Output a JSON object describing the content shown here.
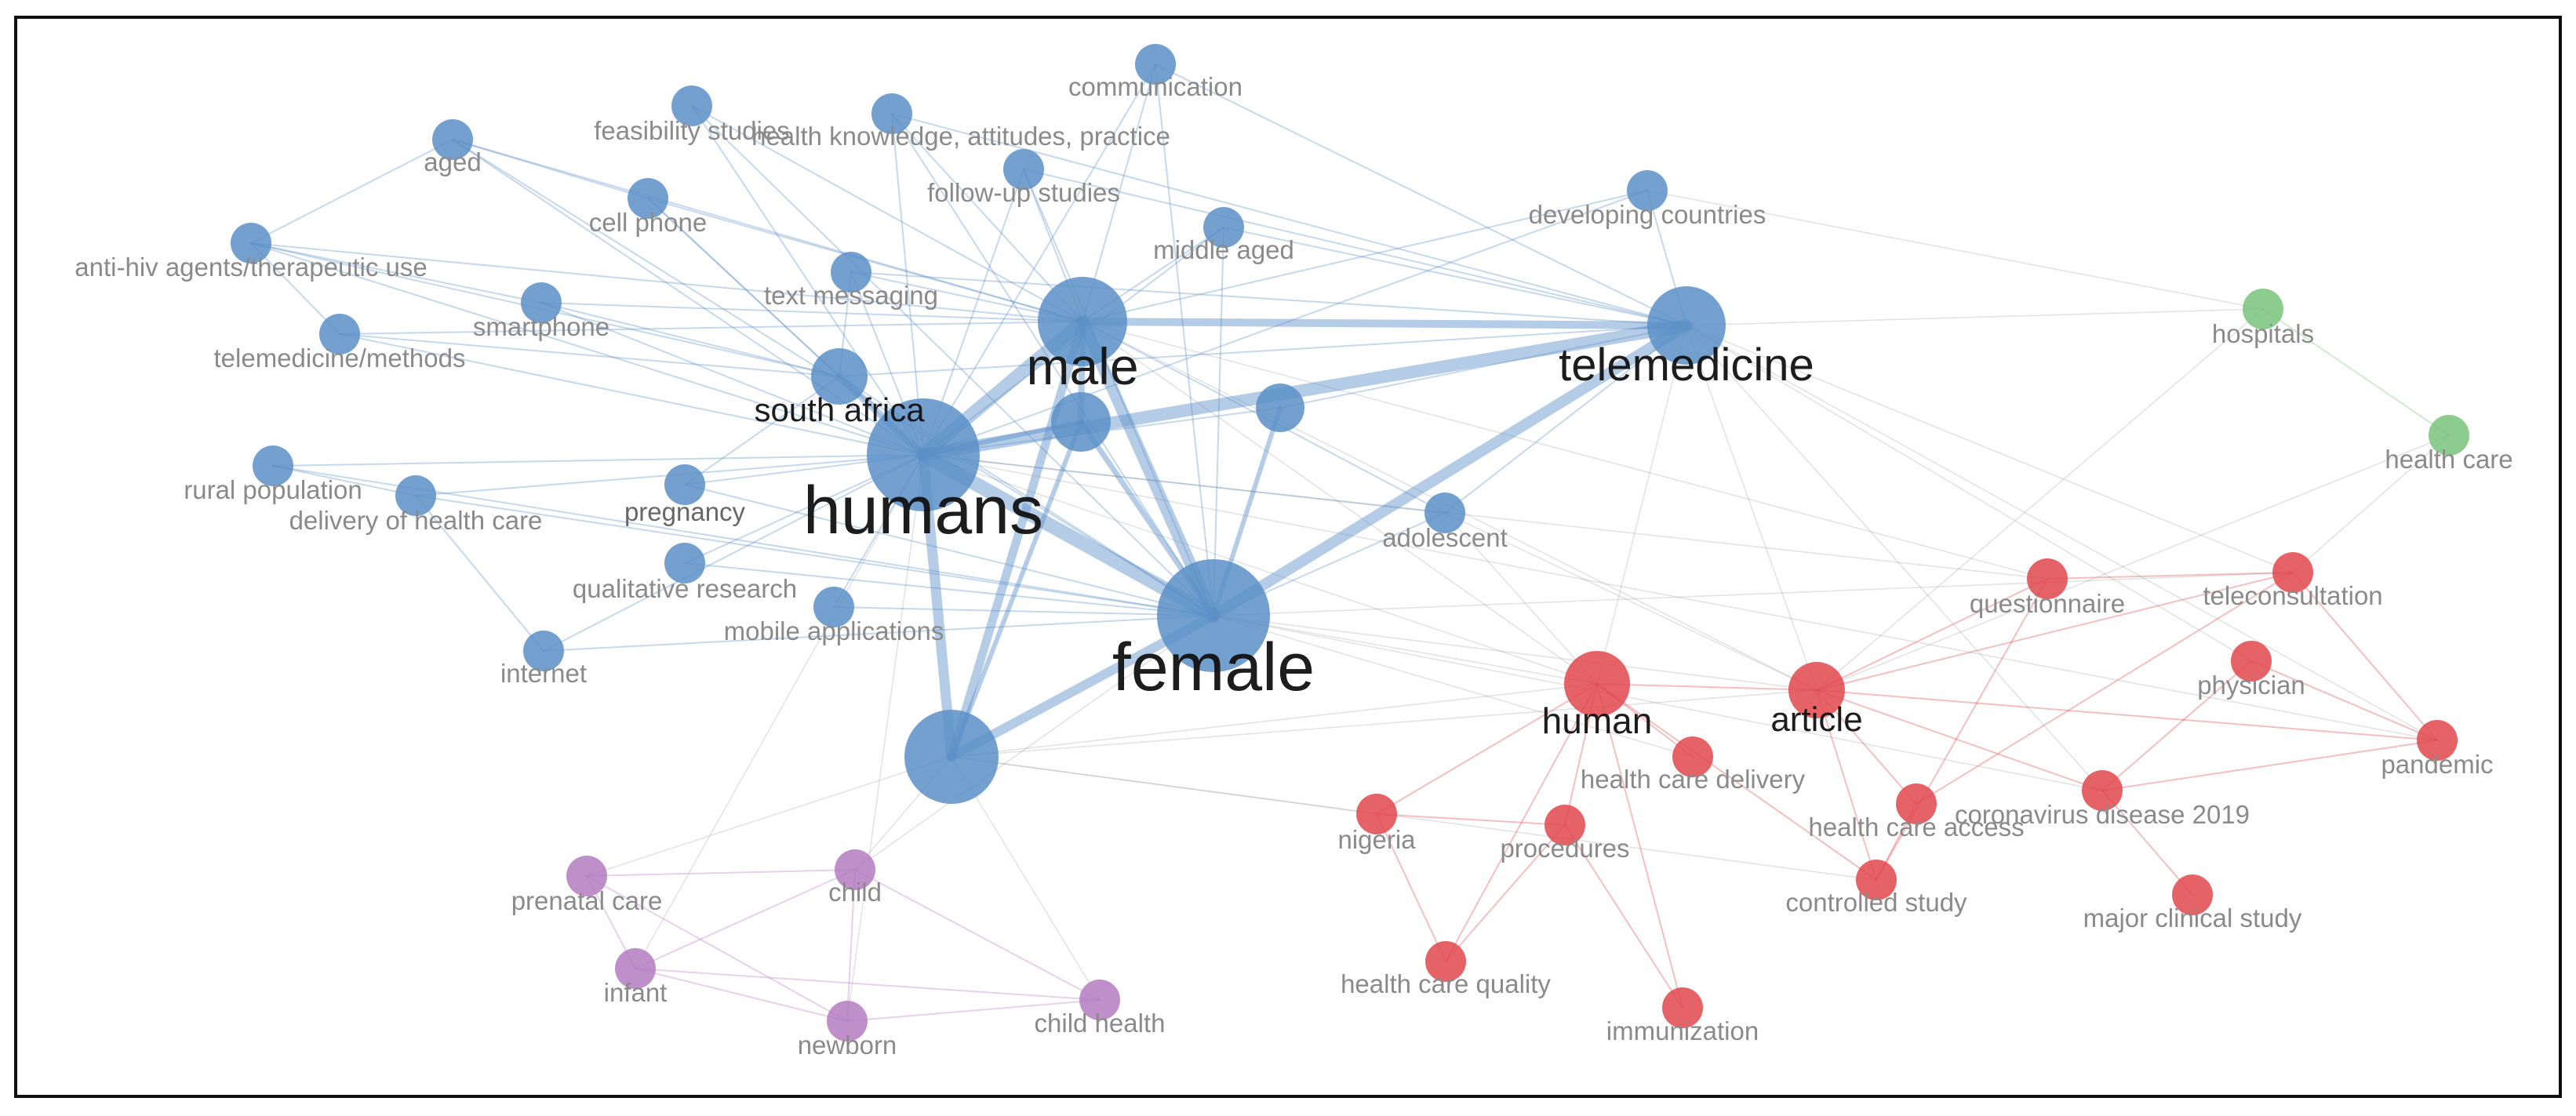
{
  "colors": {
    "blue": "#5b8fc7",
    "red": "#e0474c",
    "green": "#78c37a",
    "purple": "#b47bc1",
    "grey": "#9a9a9a"
  },
  "nodes": [
    {
      "id": "humans",
      "label": "humans",
      "group": "blue",
      "weight": 5
    },
    {
      "id": "female",
      "label": "female",
      "group": "blue",
      "weight": 5
    },
    {
      "id": "male",
      "label": "male",
      "group": "blue",
      "weight": 4
    },
    {
      "id": "telemedicine",
      "label": "telemedicine",
      "group": "blue",
      "weight": 3.5
    },
    {
      "id": "south_africa",
      "label": "south africa",
      "group": "blue",
      "weight": 2.5
    },
    {
      "id": "big_unlabeled",
      "label": "",
      "group": "blue",
      "weight": 5
    },
    {
      "id": "male_sub",
      "label": "",
      "group": "blue",
      "weight": 2
    },
    {
      "id": "mid_unlabeled",
      "label": "",
      "group": "blue",
      "weight": 1.5
    },
    {
      "id": "communication",
      "label": "communication",
      "group": "blue",
      "weight": 1
    },
    {
      "id": "feasibility_studies",
      "label": "feasibility studies",
      "group": "blue",
      "weight": 1
    },
    {
      "id": "health_knowledge",
      "label": "health knowledge, attitudes, practice",
      "group": "blue",
      "weight": 1
    },
    {
      "id": "aged",
      "label": "aged",
      "group": "blue",
      "weight": 1
    },
    {
      "id": "follow_up",
      "label": "follow-up studies",
      "group": "blue",
      "weight": 1
    },
    {
      "id": "cell_phone",
      "label": "cell phone",
      "group": "blue",
      "weight": 1
    },
    {
      "id": "middle_aged",
      "label": "middle aged",
      "group": "blue",
      "weight": 1
    },
    {
      "id": "developing_countries",
      "label": "developing countries",
      "group": "blue",
      "weight": 1
    },
    {
      "id": "anti_hiv",
      "label": "anti-hiv agents/therapeutic use",
      "group": "blue",
      "weight": 1
    },
    {
      "id": "text_messaging",
      "label": "text messaging",
      "group": "blue",
      "weight": 1
    },
    {
      "id": "smartphone",
      "label": "smartphone",
      "group": "blue",
      "weight": 1
    },
    {
      "id": "telemedicine_methods",
      "label": "telemedicine/methods",
      "group": "blue",
      "weight": 1
    },
    {
      "id": "rural_population",
      "label": "rural population",
      "group": "blue",
      "weight": 1
    },
    {
      "id": "delivery_hc",
      "label": "delivery of health care",
      "group": "blue",
      "weight": 1
    },
    {
      "id": "pregnancy",
      "label": "pregnancy",
      "group": "blue",
      "weight": 1
    },
    {
      "id": "adolescent",
      "label": "adolescent",
      "group": "blue",
      "weight": 1
    },
    {
      "id": "qualitative_research",
      "label": "qualitative research",
      "group": "blue",
      "weight": 1
    },
    {
      "id": "mobile_applications",
      "label": "mobile applications",
      "group": "blue",
      "weight": 1
    },
    {
      "id": "internet",
      "label": "internet",
      "group": "blue",
      "weight": 1
    },
    {
      "id": "hospitals",
      "label": "hospitals",
      "group": "green",
      "weight": 1
    },
    {
      "id": "health_care",
      "label": "health care",
      "group": "green",
      "weight": 1
    },
    {
      "id": "human",
      "label": "human",
      "group": "red",
      "weight": 2
    },
    {
      "id": "article",
      "label": "article",
      "group": "red",
      "weight": 1.8
    },
    {
      "id": "questionnaire",
      "label": "questionnaire",
      "group": "red",
      "weight": 1
    },
    {
      "id": "teleconsultation",
      "label": "teleconsultation",
      "group": "red",
      "weight": 1
    },
    {
      "id": "physician",
      "label": "physician",
      "group": "red",
      "weight": 1
    },
    {
      "id": "pandemic",
      "label": "pandemic",
      "group": "red",
      "weight": 1
    },
    {
      "id": "health_care_delivery",
      "label": "health care delivery",
      "group": "red",
      "weight": 1
    },
    {
      "id": "covid19",
      "label": "coronavirus disease 2019",
      "group": "red",
      "weight": 1
    },
    {
      "id": "health_care_access",
      "label": "health care access",
      "group": "red",
      "weight": 1
    },
    {
      "id": "nigeria",
      "label": "nigeria",
      "group": "red",
      "weight": 1
    },
    {
      "id": "procedures",
      "label": "procedures",
      "group": "red",
      "weight": 1
    },
    {
      "id": "controlled_study",
      "label": "controlled study",
      "group": "red",
      "weight": 1
    },
    {
      "id": "major_clinical_study",
      "label": "major clinical study",
      "group": "red",
      "weight": 1
    },
    {
      "id": "health_care_quality",
      "label": "health care quality",
      "group": "red",
      "weight": 1
    },
    {
      "id": "immunization",
      "label": "immunization",
      "group": "red",
      "weight": 1
    },
    {
      "id": "prenatal_care",
      "label": "prenatal care",
      "group": "purple",
      "weight": 1
    },
    {
      "id": "child",
      "label": "child",
      "group": "purple",
      "weight": 1
    },
    {
      "id": "infant",
      "label": "infant",
      "group": "purple",
      "weight": 1
    },
    {
      "id": "newborn",
      "label": "newborn",
      "group": "purple",
      "weight": 1
    },
    {
      "id": "child_health",
      "label": "child health",
      "group": "purple",
      "weight": 1
    }
  ],
  "strong_links": [
    [
      "humans",
      "female"
    ],
    [
      "humans",
      "male"
    ],
    [
      "humans",
      "telemedicine"
    ],
    [
      "female",
      "male"
    ],
    [
      "female",
      "telemedicine"
    ],
    [
      "humans",
      "big_unlabeled"
    ],
    [
      "female",
      "big_unlabeled"
    ],
    [
      "male",
      "big_unlabeled"
    ],
    [
      "male",
      "telemedicine"
    ],
    [
      "humans",
      "south_africa"
    ],
    [
      "male",
      "male_sub"
    ],
    [
      "female",
      "male_sub"
    ],
    [
      "humans",
      "male_sub"
    ],
    [
      "female",
      "mid_unlabeled"
    ],
    [
      "big_unlabeled",
      "male_sub"
    ]
  ],
  "weak_links": [
    [
      "human",
      "article"
    ],
    [
      "human",
      "health_care_delivery"
    ],
    [
      "human",
      "procedures"
    ],
    [
      "article",
      "questionnaire"
    ],
    [
      "article",
      "teleconsultation"
    ],
    [
      "article",
      "pandemic"
    ],
    [
      "article",
      "covid19"
    ],
    [
      "article",
      "health_care_access"
    ],
    [
      "article",
      "controlled_study"
    ],
    [
      "human",
      "nigeria"
    ],
    [
      "human",
      "health_care_quality"
    ],
    [
      "human",
      "controlled_study"
    ],
    [
      "nigeria",
      "procedures"
    ],
    [
      "nigeria",
      "health_care_quality"
    ],
    [
      "procedures",
      "health_care_quality"
    ],
    [
      "covid19",
      "pandemic"
    ],
    [
      "teleconsultation",
      "pandemic"
    ],
    [
      "physician",
      "pandemic"
    ],
    [
      "questionnaire",
      "teleconsultation"
    ],
    [
      "covid19",
      "major_clinical_study"
    ],
    [
      "health_care_access",
      "controlled_study"
    ],
    [
      "questionnaire",
      "controlled_study"
    ],
    [
      "physician",
      "covid19"
    ],
    [
      "teleconsultation",
      "health_care_access"
    ],
    [
      "human",
      "immunization"
    ],
    [
      "procedures",
      "immunization"
    ],
    [
      "hospitals",
      "health_care"
    ],
    [
      "hospitals",
      "telemedicine"
    ],
    [
      "hospitals",
      "article"
    ],
    [
      "prenatal_care",
      "child"
    ],
    [
      "prenatal_care",
      "infant"
    ],
    [
      "prenatal_care",
      "newborn"
    ],
    [
      "child",
      "infant"
    ],
    [
      "child",
      "newborn"
    ],
    [
      "infant",
      "newborn"
    ],
    [
      "child",
      "child_health"
    ],
    [
      "newborn",
      "child_health"
    ],
    [
      "infant",
      "child_health"
    ],
    [
      "prenatal_care",
      "big_unlabeled"
    ],
    [
      "child",
      "big_unlabeled"
    ],
    [
      "child_health",
      "big_unlabeled"
    ],
    [
      "newborn",
      "humans"
    ],
    [
      "infant",
      "humans"
    ],
    [
      "child",
      "female"
    ],
    [
      "telemedicine",
      "developing_countries"
    ],
    [
      "telemedicine",
      "human"
    ],
    [
      "telemedicine",
      "article"
    ],
    [
      "telemedicine",
      "adolescent"
    ],
    [
      "telemedicine",
      "middle_aged"
    ],
    [
      "telemedicine",
      "text_messaging"
    ],
    [
      "female",
      "human"
    ],
    [
      "female",
      "article"
    ],
    [
      "humans",
      "human"
    ],
    [
      "big_unlabeled",
      "human"
    ],
    [
      "big_unlabeled",
      "article"
    ],
    [
      "male",
      "human"
    ],
    [
      "male",
      "article"
    ],
    [
      "aged",
      "humans"
    ],
    [
      "aged",
      "male"
    ],
    [
      "aged",
      "cell_phone"
    ],
    [
      "aged",
      "female"
    ],
    [
      "feasibility_studies",
      "humans"
    ],
    [
      "feasibility_studies",
      "male"
    ],
    [
      "feasibility_studies",
      "female"
    ],
    [
      "health_knowledge",
      "humans"
    ],
    [
      "health_knowledge",
      "male"
    ],
    [
      "health_knowledge",
      "female"
    ],
    [
      "communication",
      "male"
    ],
    [
      "communication",
      "humans"
    ],
    [
      "communication",
      "female"
    ],
    [
      "follow_up",
      "male"
    ],
    [
      "follow_up",
      "humans"
    ],
    [
      "follow_up",
      "female"
    ],
    [
      "cell_phone",
      "humans"
    ],
    [
      "cell_phone",
      "male"
    ],
    [
      "cell_phone",
      "south_africa"
    ],
    [
      "middle_aged",
      "male"
    ],
    [
      "middle_aged",
      "humans"
    ],
    [
      "middle_aged",
      "female"
    ],
    [
      "anti_hiv",
      "humans"
    ],
    [
      "anti_hiv",
      "south_africa"
    ],
    [
      "anti_hiv",
      "telemedicine_methods"
    ],
    [
      "anti_hiv",
      "aged"
    ],
    [
      "anti_hiv",
      "smartphone"
    ],
    [
      "anti_hiv",
      "male"
    ],
    [
      "text_messaging",
      "humans"
    ],
    [
      "text_messaging",
      "male"
    ],
    [
      "text_messaging",
      "south_africa"
    ],
    [
      "smartphone",
      "humans"
    ],
    [
      "smartphone",
      "south_africa"
    ],
    [
      "smartphone",
      "male"
    ],
    [
      "telemedicine_methods",
      "humans"
    ],
    [
      "telemedicine_methods",
      "south_africa"
    ],
    [
      "telemedicine_methods",
      "male"
    ],
    [
      "rural_population",
      "humans"
    ],
    [
      "rural_population",
      "delivery_hc"
    ],
    [
      "rural_population",
      "female"
    ],
    [
      "delivery_hc",
      "humans"
    ],
    [
      "delivery_hc",
      "female"
    ],
    [
      "delivery_hc",
      "internet"
    ],
    [
      "pregnancy",
      "humans"
    ],
    [
      "pregnancy",
      "female"
    ],
    [
      "pregnancy",
      "south_africa"
    ],
    [
      "qualitative_research",
      "humans"
    ],
    [
      "qualitative_research",
      "female"
    ],
    [
      "mobile_applications",
      "humans"
    ],
    [
      "mobile_applications",
      "female"
    ],
    [
      "internet",
      "humans"
    ],
    [
      "internet",
      "female"
    ],
    [
      "adolescent",
      "female"
    ],
    [
      "adolescent",
      "humans"
    ],
    [
      "adolescent",
      "male"
    ],
    [
      "developing_countries",
      "humans"
    ],
    [
      "developing_countries",
      "male"
    ],
    [
      "mid_unlabeled",
      "humans"
    ],
    [
      "mid_unlabeled",
      "telemedicine"
    ],
    [
      "south_africa",
      "female"
    ],
    [
      "south_africa",
      "telemedicine"
    ],
    [
      "communication",
      "telemedicine"
    ],
    [
      "health_knowledge",
      "telemedicine"
    ],
    [
      "follow_up",
      "telemedicine"
    ],
    [
      "female",
      "health_care_delivery"
    ],
    [
      "female",
      "covid19"
    ],
    [
      "female",
      "teleconsultation"
    ],
    [
      "humans",
      "questionnaire"
    ],
    [
      "humans",
      "pandemic"
    ],
    [
      "big_unlabeled",
      "nigeria"
    ],
    [
      "big_unlabeled",
      "controlled_study"
    ],
    [
      "male",
      "questionnaire"
    ],
    [
      "telemedicine",
      "teleconsultation"
    ],
    [
      "telemedicine",
      "pandemic"
    ],
    [
      "telemedicine",
      "physician"
    ],
    [
      "telemedicine",
      "covid19"
    ],
    [
      "adolescent",
      "human"
    ],
    [
      "adolescent",
      "article"
    ],
    [
      "developing_countries",
      "hospitals"
    ],
    [
      "health_care",
      "teleconsultation"
    ],
    [
      "health_care",
      "article"
    ]
  ]
}
